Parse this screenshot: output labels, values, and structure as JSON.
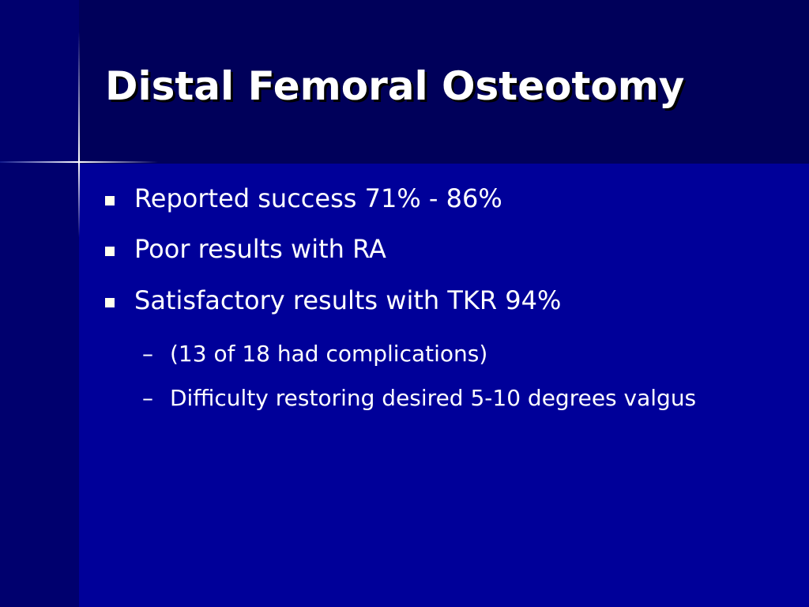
{
  "title": "Distal Femoral Osteotomy",
  "bullets": [
    {
      "text": "Reported success 71% - 86%"
    },
    {
      "text": "Poor results with RA"
    },
    {
      "text": "Satisfactory results with TKR 94%",
      "sub_items": [
        {
          "marker": "–",
          "text": "(13 of 18 had complications)"
        },
        {
          "marker": "–",
          "text": "Difficulty restoring desired 5-10 degrees valgus"
        }
      ]
    }
  ]
}
